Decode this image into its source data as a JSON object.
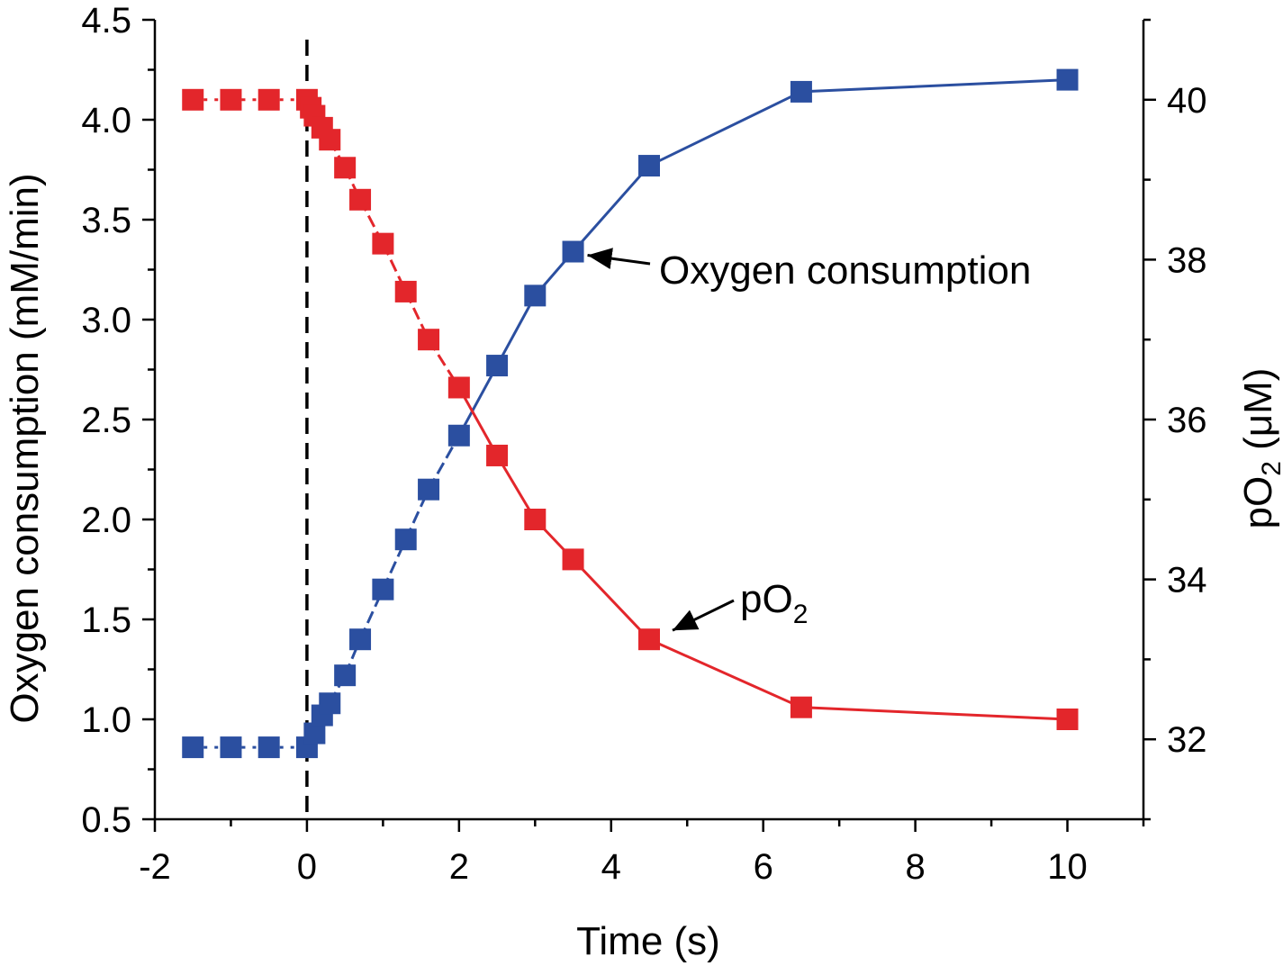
{
  "chart_data": {
    "type": "line",
    "title": "",
    "xlabel": "Time (s)",
    "ylabel": "Oxygen consumption (mM/min)",
    "y2label": {
      "prefix": "pO",
      "sub": "2",
      "suffix": " (μM)"
    },
    "xlim": [
      -2,
      11
    ],
    "ylim": [
      0.5,
      4.5
    ],
    "y2lim": [
      31,
      41
    ],
    "x_ticks": [
      -2,
      0,
      2,
      4,
      6,
      8,
      10
    ],
    "y_ticks": [
      "0.5",
      "1.0",
      "1.5",
      "2.0",
      "2.5",
      "3.0",
      "3.5",
      "4.0",
      "4.5"
    ],
    "y2_ticks": [
      "32",
      "34",
      "36",
      "38",
      "40"
    ],
    "event_line_x": 0,
    "series": [
      {
        "name": "Oxygen consumption",
        "axis": "left",
        "color": "#2b4fa0",
        "x": [
          -1.5,
          -1.0,
          -0.5,
          0.0,
          0.1,
          0.2,
          0.3,
          0.5,
          0.7,
          1.0,
          1.3,
          1.6,
          2.0,
          2.5,
          3.0,
          3.5,
          4.5,
          6.5,
          10.0
        ],
        "values": [
          0.86,
          0.86,
          0.86,
          0.86,
          0.93,
          1.02,
          1.08,
          1.22,
          1.4,
          1.65,
          1.9,
          2.15,
          2.42,
          2.77,
          3.12,
          3.34,
          3.77,
          4.14,
          4.2
        ]
      },
      {
        "name": "pO2",
        "axis": "right",
        "color": "#e3262b",
        "x": [
          -1.5,
          -1.0,
          -0.5,
          0.0,
          0.05,
          0.1,
          0.2,
          0.3,
          0.5,
          0.7,
          1.0,
          1.3,
          1.6,
          2.0,
          2.5,
          3.0,
          3.5,
          4.5,
          6.5,
          10.0
        ],
        "values": [
          40.0,
          40.0,
          40.0,
          40.0,
          39.9,
          39.8,
          39.65,
          39.5,
          39.15,
          38.75,
          38.2,
          37.6,
          37.0,
          36.4,
          35.55,
          34.75,
          34.25,
          33.25,
          32.4,
          32.25
        ]
      }
    ],
    "annotations": [
      {
        "text": "Oxygen consumption",
        "target_series": "Oxygen consumption"
      },
      {
        "text": "pO",
        "sub": "2",
        "target_series": "pO2"
      }
    ]
  }
}
